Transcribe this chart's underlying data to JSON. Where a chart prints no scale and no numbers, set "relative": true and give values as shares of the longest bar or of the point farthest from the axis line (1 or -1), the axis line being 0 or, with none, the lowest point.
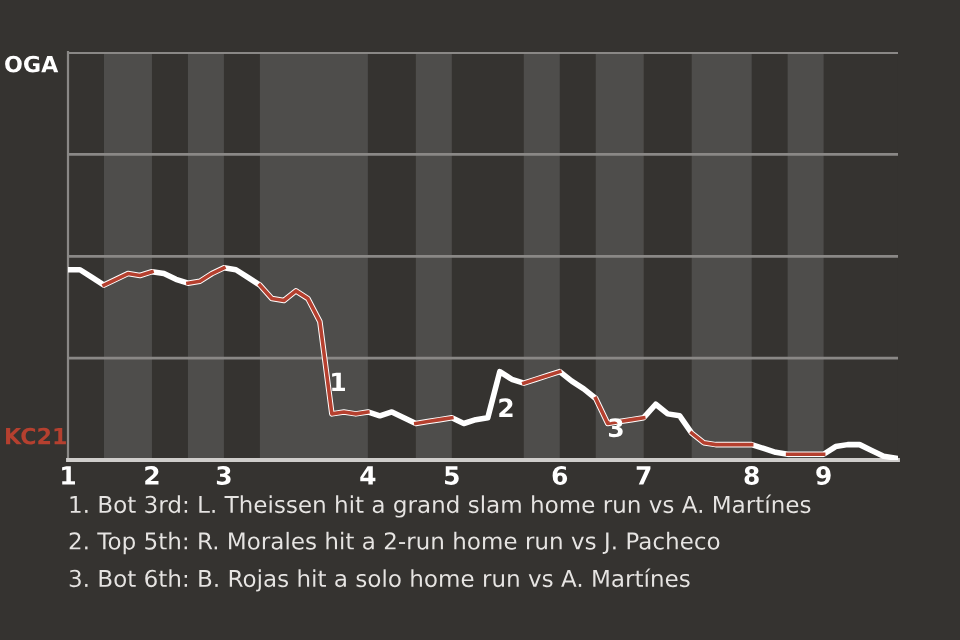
{
  "chart_data": {
    "type": "line",
    "relative": true,
    "categories": [
      "1",
      null,
      null,
      null,
      null,
      null,
      null,
      "2",
      null,
      null,
      null,
      null,
      null,
      "3",
      null,
      null,
      null,
      null,
      null,
      null,
      null,
      null,
      null,
      null,
      null,
      "4",
      null,
      null,
      null,
      null,
      null,
      null,
      "5",
      null,
      null,
      null,
      null,
      null,
      null,
      null,
      null,
      "6",
      null,
      null,
      null,
      null,
      null,
      null,
      "7",
      null,
      null,
      null,
      null,
      null,
      null,
      null,
      null,
      "8",
      null,
      null,
      null,
      null,
      null,
      "9",
      null,
      null,
      null,
      null,
      null,
      null
    ],
    "series": [
      {
        "color": "#ffffff",
        "values": [
          0.99,
          0.99,
          0.95,
          0.91,
          0.94,
          0.97,
          0.96,
          0.98,
          0.97,
          0.94,
          0.92,
          0.93,
          0.97,
          1,
          0.99,
          0.95,
          0.91,
          0.84,
          0.83,
          0.88,
          0.84,
          0.72,
          0.24,
          0.25,
          0.24,
          0.25,
          0.23,
          0.25,
          0.22,
          0.19,
          0.2,
          0.21,
          0.22,
          0.19,
          0.21,
          0.22,
          0.46,
          0.42,
          0.4,
          0.42,
          0.44,
          0.46,
          0.41,
          0.37,
          0.32,
          0.19,
          0.2,
          0.21,
          0.22,
          0.29,
          0.24,
          0.23,
          0.14,
          0.09,
          0.08,
          0.08,
          0.08,
          0.08,
          0.06,
          0.04,
          0.03,
          0.03,
          0.03,
          0.03,
          0.07,
          0.08,
          0.08,
          0.05,
          0.02,
          0.01
        ]
      },
      {
        "color": "#b5402f",
        "values": [
          null,
          null,
          null,
          0.91,
          0.94,
          0.97,
          0.96,
          0.98,
          null,
          null,
          0.92,
          0.93,
          0.97,
          1,
          null,
          null,
          0.91,
          0.84,
          0.83,
          0.88,
          0.84,
          0.72,
          0.24,
          0.25,
          0.24,
          0.25,
          null,
          null,
          null,
          0.19,
          0.2,
          0.21,
          0.22,
          null,
          null,
          null,
          null,
          null,
          0.4,
          0.42,
          0.44,
          0.46,
          null,
          null,
          0.32,
          0.19,
          0.2,
          0.21,
          0.22,
          null,
          null,
          null,
          0.14,
          0.09,
          0.08,
          0.08,
          0.08,
          0.08,
          null,
          null,
          0.03,
          0.03,
          0.03,
          0.03,
          null,
          null,
          null,
          null,
          null,
          null
        ]
      }
    ],
    "marker": "none",
    "line_style": "solid",
    "ref_lines": [
      {
        "axis": "y",
        "value": 0.53,
        "color": "#8a8886"
      },
      {
        "axis": "y",
        "value": 1.06,
        "color": "#8a8886"
      },
      {
        "axis": "y",
        "value": 1.59,
        "color": "#8a8886"
      },
      {
        "axis": "y",
        "value": 2.12,
        "color": "#8a8886"
      }
    ],
    "annotations": [
      "OGA",
      "KC21",
      "1",
      "2",
      "3",
      "1. Bot 3rd: L. Theissen hit a grand slam home run vs A. Martínes",
      "2. Top 5th: R. Morales hit a 2-run home run vs J. Pacheco",
      "3. Bot 6th: B. Rojas hit a solo home run vs A. Martínes"
    ]
  }
}
